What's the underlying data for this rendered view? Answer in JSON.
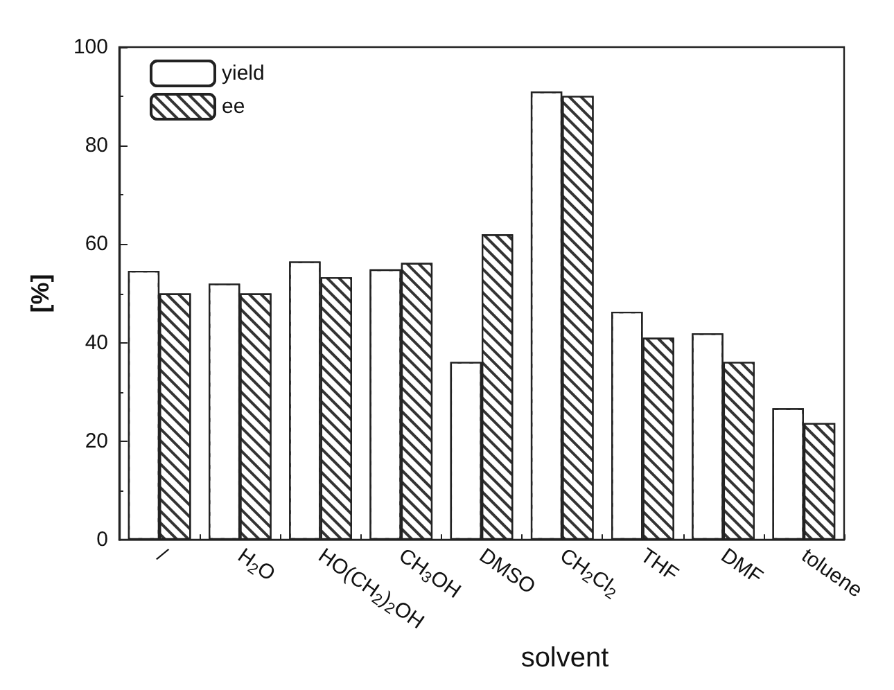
{
  "chart_data": {
    "type": "bar",
    "xlabel": "solvent",
    "ylabel": "[%]",
    "categories": [
      "/",
      "H$_{2}$O",
      "HO(CH$_{2}$)$_{2}$OH",
      "CH$_{3}$OH",
      "DMSO",
      "CH$_{2}$Cl$_{2}$",
      "THF",
      "DMF",
      "toluene"
    ],
    "series": [
      {
        "name": "yield",
        "color": "#ffffff",
        "values": [
          54.6,
          52,
          56.5,
          54.9,
          36.1,
          91,
          46.3,
          41.9,
          26.7
        ]
      },
      {
        "name": "ee",
        "color": "#333333",
        "values": [
          50,
          50,
          53.3,
          56.2,
          62,
          90.1,
          41,
          36.1,
          23.7
        ]
      }
    ],
    "ylim": [
      0,
      100
    ],
    "yticks": [
      0,
      20,
      40,
      60,
      80,
      100
    ],
    "grid": false,
    "legend": "top left"
  }
}
